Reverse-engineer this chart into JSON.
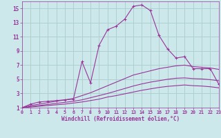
{
  "xlabel": "Windchill (Refroidissement éolien,°C)",
  "bg_color": "#cce8ea",
  "grid_color": "#aacccc",
  "line_color": "#993399",
  "xlim": [
    0,
    23
  ],
  "ylim": [
    1,
    16
  ],
  "xticks": [
    0,
    1,
    2,
    3,
    4,
    5,
    6,
    7,
    8,
    9,
    10,
    11,
    12,
    13,
    14,
    15,
    16,
    17,
    18,
    19,
    20,
    21,
    22,
    23
  ],
  "yticks": [
    1,
    3,
    5,
    7,
    9,
    11,
    13,
    15
  ],
  "series": [
    {
      "x": [
        0,
        1,
        2,
        3,
        4,
        5,
        6,
        7,
        8,
        9,
        10,
        11,
        12,
        13,
        14,
        15,
        16,
        17,
        18,
        19,
        20,
        21,
        22,
        23
      ],
      "y": [
        1.0,
        1.5,
        1.8,
        1.9,
        2.0,
        2.1,
        2.2,
        7.5,
        4.5,
        9.8,
        12.0,
        12.5,
        13.5,
        15.3,
        15.5,
        14.7,
        11.2,
        9.3,
        8.0,
        8.2,
        6.5,
        6.5,
        6.5,
        4.3
      ],
      "marker": "+"
    },
    {
      "x": [
        0,
        1,
        2,
        3,
        4,
        5,
        6,
        7,
        8,
        9,
        10,
        11,
        12,
        13,
        14,
        15,
        16,
        17,
        18,
        19,
        20,
        21,
        22,
        23
      ],
      "y": [
        1.0,
        1.3,
        1.5,
        1.7,
        1.9,
        2.1,
        2.3,
        2.7,
        3.1,
        3.6,
        4.1,
        4.6,
        5.1,
        5.6,
        5.9,
        6.2,
        6.5,
        6.7,
        6.9,
        7.0,
        6.8,
        6.7,
        6.6,
        6.4
      ],
      "marker": null
    },
    {
      "x": [
        0,
        1,
        2,
        3,
        4,
        5,
        6,
        7,
        8,
        9,
        10,
        11,
        12,
        13,
        14,
        15,
        16,
        17,
        18,
        19,
        20,
        21,
        22,
        23
      ],
      "y": [
        1.0,
        1.15,
        1.3,
        1.45,
        1.6,
        1.75,
        1.9,
        2.1,
        2.4,
        2.7,
        3.0,
        3.35,
        3.7,
        4.05,
        4.35,
        4.6,
        4.8,
        5.0,
        5.15,
        5.2,
        5.1,
        5.05,
        4.95,
        4.8
      ],
      "marker": null
    },
    {
      "x": [
        0,
        1,
        2,
        3,
        4,
        5,
        6,
        7,
        8,
        9,
        10,
        11,
        12,
        13,
        14,
        15,
        16,
        17,
        18,
        19,
        20,
        21,
        22,
        23
      ],
      "y": [
        1.0,
        1.1,
        1.2,
        1.3,
        1.4,
        1.5,
        1.65,
        1.8,
        2.0,
        2.2,
        2.5,
        2.7,
        2.95,
        3.2,
        3.45,
        3.65,
        3.85,
        4.0,
        4.1,
        4.2,
        4.1,
        4.05,
        3.95,
        3.8
      ],
      "marker": null
    }
  ]
}
